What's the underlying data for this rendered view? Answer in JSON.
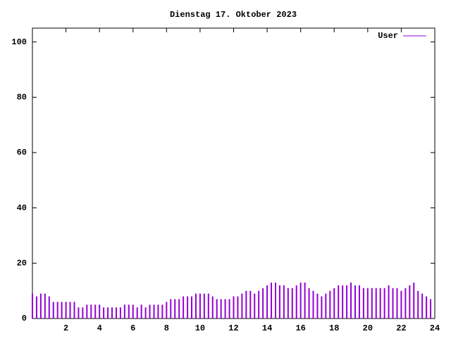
{
  "chart_data": {
    "type": "impulses",
    "title": "Dienstag 17. Oktober 2023",
    "x": [
      0,
      0.25,
      0.5,
      0.75,
      1,
      1.25,
      1.5,
      1.75,
      2,
      2.25,
      2.5,
      2.75,
      3,
      3.25,
      3.5,
      3.75,
      4,
      4.25,
      4.5,
      4.75,
      5,
      5.25,
      5.5,
      5.75,
      6,
      6.25,
      6.5,
      6.75,
      7,
      7.25,
      7.5,
      7.75,
      8,
      8.25,
      8.5,
      8.75,
      9,
      9.25,
      9.5,
      9.75,
      10,
      10.25,
      10.5,
      10.75,
      11,
      11.25,
      11.5,
      11.75,
      12,
      12.25,
      12.5,
      12.75,
      13,
      13.25,
      13.5,
      13.75,
      14,
      14.25,
      14.5,
      14.75,
      15,
      15.25,
      15.5,
      15.75,
      16,
      16.25,
      16.5,
      16.75,
      17,
      17.25,
      17.5,
      17.75,
      18,
      18.25,
      18.5,
      18.75,
      19,
      19.25,
      19.5,
      19.75,
      20,
      20.25,
      20.5,
      20.75,
      21,
      21.25,
      21.5,
      21.75,
      22,
      22.25,
      22.5,
      22.75,
      23,
      23.25,
      23.5,
      23.75
    ],
    "series": [
      {
        "name": "User",
        "color": "#9400d3",
        "values": [
          9,
          8,
          9,
          9,
          8,
          6,
          6,
          6,
          6,
          6,
          6,
          4,
          4,
          5,
          5,
          5,
          5,
          4,
          4,
          4,
          4,
          4,
          5,
          5,
          5,
          4,
          5,
          4,
          5,
          5,
          5,
          5,
          6,
          7,
          7,
          7,
          8,
          8,
          8,
          9,
          9,
          9,
          9,
          8,
          7,
          7,
          7,
          7,
          8,
          8,
          9,
          10,
          10,
          9,
          10,
          11,
          12,
          13,
          13,
          12,
          12,
          11,
          11,
          12,
          13,
          13,
          11,
          10,
          9,
          8,
          9,
          10,
          11,
          12,
          12,
          12,
          13,
          12,
          12,
          11,
          11,
          11,
          11,
          11,
          11,
          12,
          11,
          11,
          10,
          11,
          12,
          13,
          10,
          9,
          8,
          7
        ]
      }
    ],
    "xlim": [
      0,
      24
    ],
    "xticks": [
      2,
      4,
      6,
      8,
      10,
      12,
      14,
      16,
      18,
      20,
      22,
      24
    ],
    "ylim": [
      0,
      105
    ],
    "yticks": [
      0,
      20,
      40,
      60,
      80,
      100
    ],
    "legend": "top-right"
  }
}
